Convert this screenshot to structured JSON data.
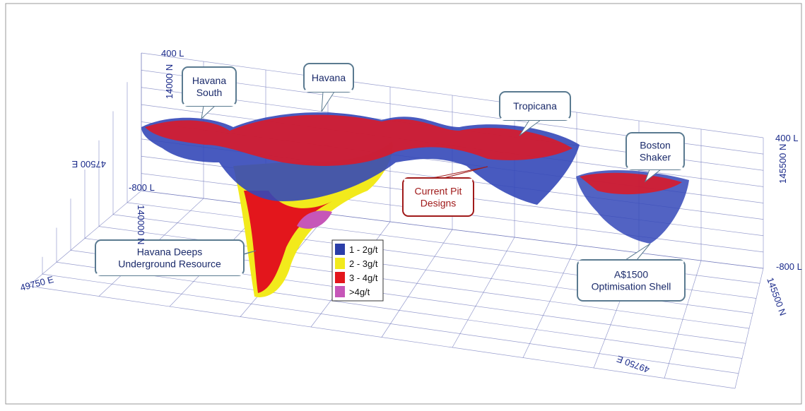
{
  "callouts": [
    {
      "lines": [
        "Havana",
        "South"
      ]
    },
    {
      "lines": [
        "Havana"
      ]
    },
    {
      "lines": [
        "Tropicana"
      ]
    },
    {
      "lines": [
        "Boston",
        "Shaker"
      ]
    },
    {
      "lines": [
        "Current Pit",
        "Designs"
      ]
    },
    {
      "lines": [
        "Havana Deeps",
        "Underground Resource"
      ]
    },
    {
      "lines": [
        "A$1500",
        "Optimisation Shell"
      ]
    }
  ],
  "legend": {
    "items": [
      {
        "label": "1 - 2g/t",
        "color": "#2b3ea8"
      },
      {
        "label": "2 - 3g/t",
        "color": "#f2ea1c"
      },
      {
        "label": "3 - 4g/t",
        "color": "#e3161c"
      },
      {
        "label": ">4g/t",
        "color": "#c656b8"
      }
    ]
  },
  "axis_labels": [
    "400 L",
    "14000 N",
    "-800 L",
    "140000 N",
    "400 L",
    "145500 N",
    "-800 L",
    "145500 N",
    "49750 E",
    "49750 E",
    "47500 E"
  ]
}
